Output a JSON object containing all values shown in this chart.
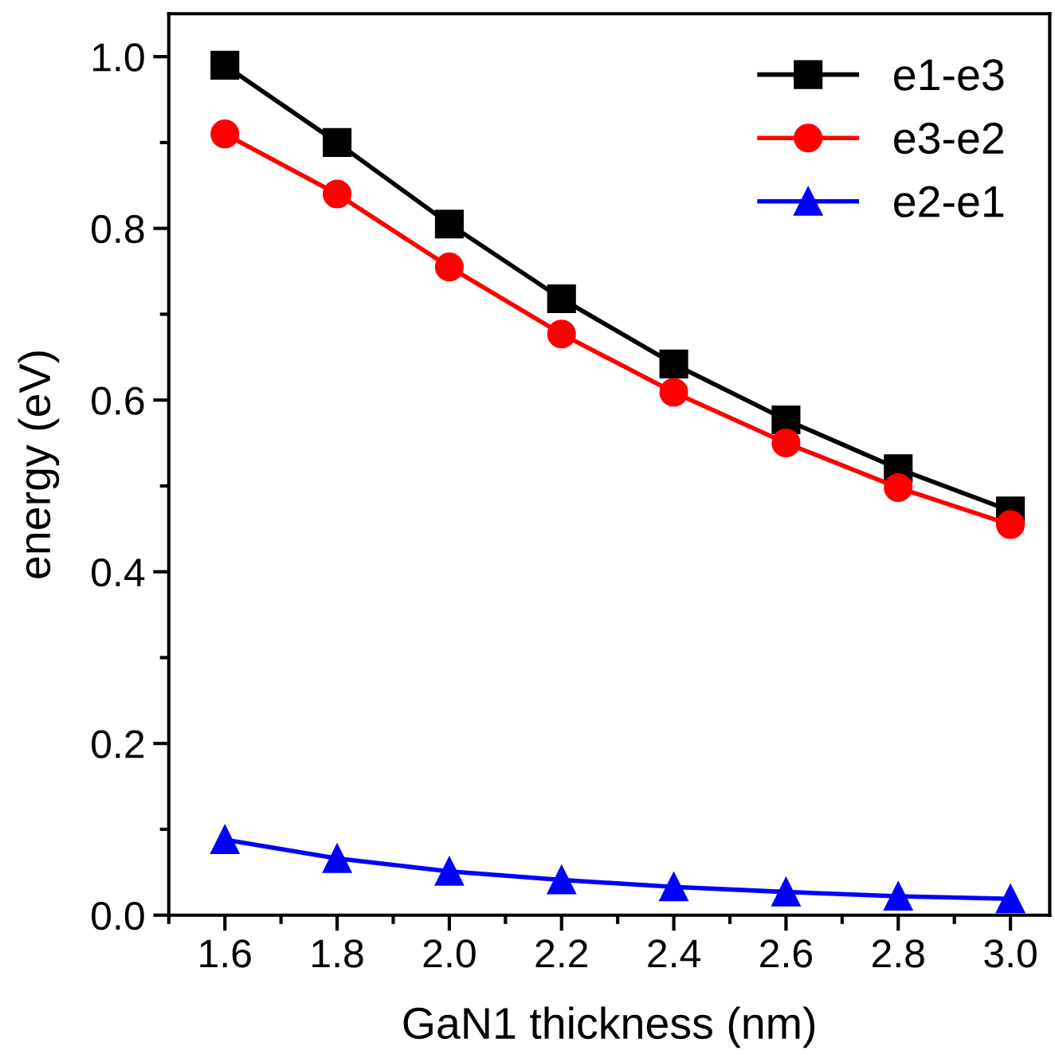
{
  "chart_data": {
    "type": "line",
    "xlabel": "GaN1 thickness (nm)",
    "ylabel": "energy (eV)",
    "x": [
      1.6,
      1.8,
      2.0,
      2.2,
      2.4,
      2.6,
      2.8,
      3.0
    ],
    "series": [
      {
        "name": "e1-e3",
        "color": "#000000",
        "marker": "square",
        "values": [
          0.99,
          0.9,
          0.805,
          0.718,
          0.642,
          0.577,
          0.52,
          0.471
        ]
      },
      {
        "name": "e3-e2",
        "color": "#ff0000",
        "marker": "circle",
        "values": [
          0.91,
          0.84,
          0.755,
          0.677,
          0.609,
          0.55,
          0.498,
          0.455
        ]
      },
      {
        "name": "e2-e1",
        "color": "#0000ff",
        "marker": "triangle",
        "values": [
          0.088,
          0.066,
          0.051,
          0.041,
          0.033,
          0.027,
          0.022,
          0.019
        ]
      }
    ],
    "xlim": [
      1.5,
      3.07
    ],
    "ylim": [
      0,
      1.05
    ],
    "xticks": [
      {
        "value": 1.6,
        "label": "1.6"
      },
      {
        "value": 1.8,
        "label": "1.8"
      },
      {
        "value": 2.0,
        "label": "2.0"
      },
      {
        "value": 2.2,
        "label": "2.2"
      },
      {
        "value": 2.4,
        "label": "2.4"
      },
      {
        "value": 2.6,
        "label": "2.6"
      },
      {
        "value": 2.8,
        "label": "2.8"
      },
      {
        "value": 3.0,
        "label": "3.0"
      }
    ],
    "yticks": [
      {
        "value": 0,
        "label": "0.0"
      },
      0.2,
      0.4,
      0.6,
      0.8,
      {
        "value": 1.0,
        "label": "1.0"
      }
    ],
    "legend": "top right",
    "grid": false,
    "line_style": "solid"
  }
}
